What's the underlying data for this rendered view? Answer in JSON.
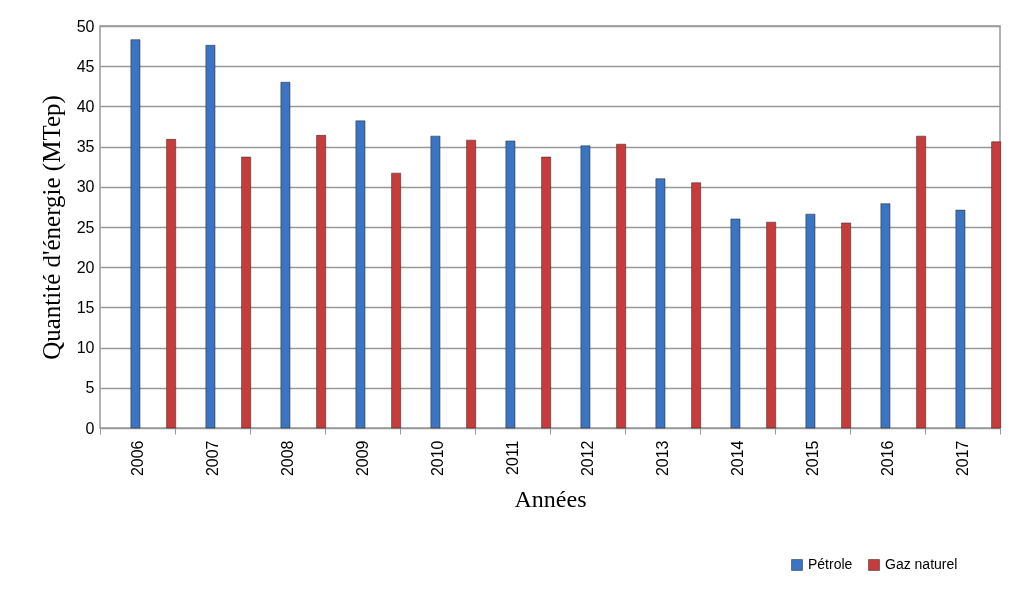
{
  "chart_data": {
    "type": "bar",
    "xlabel": "Années",
    "ylabel": "Quantité d'énergie (MTep)",
    "categories": [
      "2006",
      "2007",
      "2008",
      "2009",
      "2010",
      "2011",
      "2012",
      "2013",
      "2014",
      "2015",
      "2016",
      "2017"
    ],
    "series": [
      {
        "name": "Pétrole",
        "color": "#3a74c2",
        "values": [
          48.3,
          47.6,
          43.0,
          38.2,
          36.3,
          35.7,
          35.1,
          31.0,
          26.0,
          26.6,
          27.9,
          27.1
        ]
      },
      {
        "name": "Gaz naturel",
        "color": "#c83b3b",
        "values": [
          35.9,
          33.7,
          36.4,
          31.7,
          35.8,
          33.7,
          35.3,
          30.5,
          25.6,
          25.5,
          36.3,
          35.6
        ]
      }
    ],
    "ylim": [
      0,
      50
    ],
    "yticks": [
      0,
      5,
      10,
      15,
      20,
      25,
      30,
      35,
      40,
      45,
      50
    ],
    "grid": "y",
    "legend": "bottom right"
  }
}
